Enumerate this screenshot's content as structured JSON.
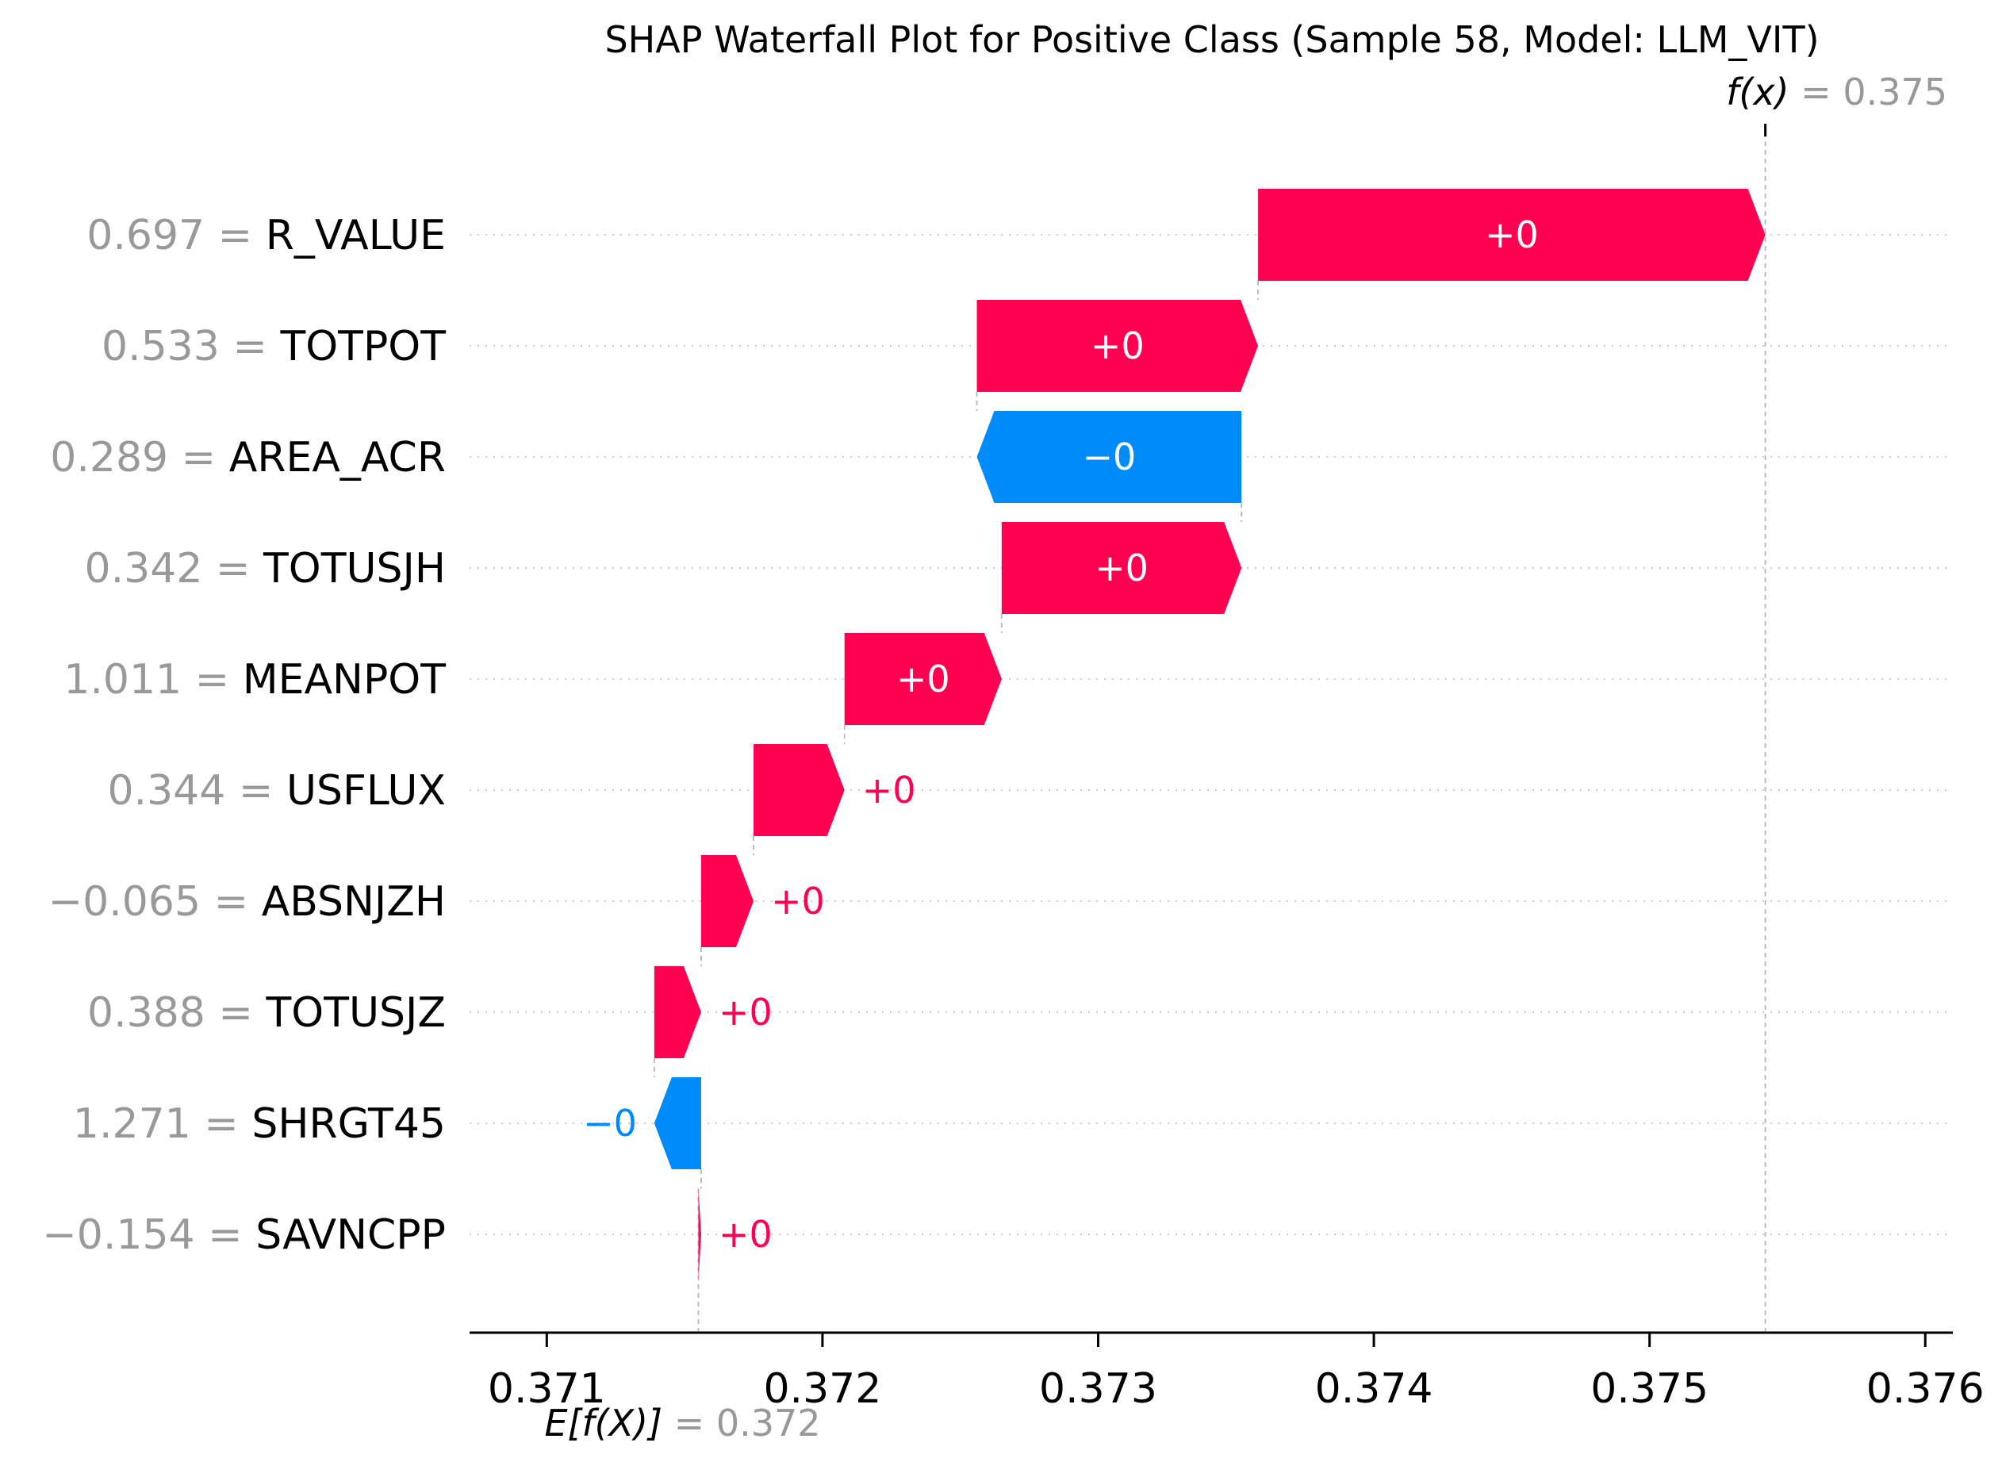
{
  "chart_data": {
    "type": "waterfall",
    "title": "SHAP Waterfall Plot for Positive Class (Sample 58, Model: LLM_VIT)",
    "base_value": 0.37155,
    "base_label": "E[f(X)]",
    "base_value_text": "= 0.372",
    "output_value": 0.37542,
    "output_label": "f(x)",
    "output_value_text": "= 0.375",
    "xlim": [
      0.37072,
      0.3761
    ],
    "x_ticks": [
      0.371,
      0.372,
      0.373,
      0.374,
      0.375,
      0.376
    ],
    "x_tick_labels": [
      "0.371",
      "0.372",
      "0.373",
      "0.374",
      "0.375",
      "0.376"
    ],
    "colors": {
      "positive": "#ff0051",
      "negative": "#008bfb",
      "gray": "#999999",
      "text": "#000000"
    },
    "features": [
      {
        "name": "R_VALUE",
        "value": "0.697",
        "start": 0.37358,
        "end": 0.37542,
        "label": "+0"
      },
      {
        "name": "TOTPOT",
        "value": "0.533",
        "start": 0.37256,
        "end": 0.37358,
        "label": "+0"
      },
      {
        "name": "AREA_ACR",
        "value": "0.289",
        "start": 0.37352,
        "end": 0.37256,
        "label": "−0"
      },
      {
        "name": "TOTUSJH",
        "value": "0.342",
        "start": 0.37265,
        "end": 0.37352,
        "label": "+0"
      },
      {
        "name": "MEANPOT",
        "value": "1.011",
        "start": 0.37208,
        "end": 0.37265,
        "label": "+0"
      },
      {
        "name": "USFLUX",
        "value": "0.344",
        "start": 0.37175,
        "end": 0.37208,
        "label": "+0"
      },
      {
        "name": "ABSNJZH",
        "value": "−0.065",
        "start": 0.37156,
        "end": 0.37175,
        "label": "+0"
      },
      {
        "name": "TOTUSJZ",
        "value": "0.388",
        "start": 0.37139,
        "end": 0.37156,
        "label": "+0"
      },
      {
        "name": "SHRGT45",
        "value": "1.271",
        "start": 0.37156,
        "end": 0.37139,
        "label": "−0"
      },
      {
        "name": "SAVNCPP",
        "value": "−0.154",
        "start": 0.37155,
        "end": 0.37156,
        "label": "+0"
      }
    ]
  }
}
